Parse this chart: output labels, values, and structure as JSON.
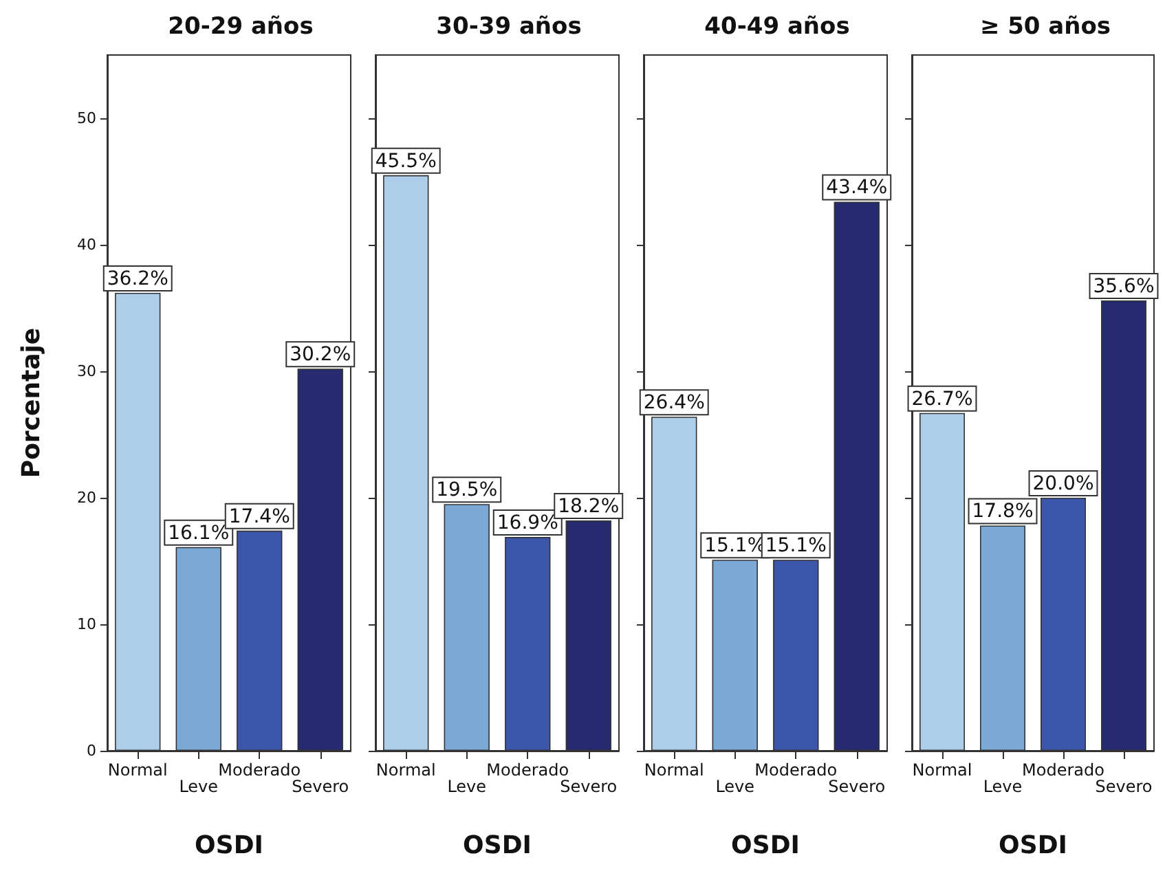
{
  "chart_data": [
    {
      "type": "bar",
      "title": "20-29 años",
      "xlabel": "OSDI",
      "ylabel": "Porcentaje",
      "categories": [
        "Normal",
        "Leve",
        "Moderado",
        "Severo"
      ],
      "values": [
        36.2,
        16.1,
        17.4,
        30.2
      ],
      "colors": [
        "#aecde9",
        "#7aa9d6",
        "#3b56ab",
        "#262a6e"
      ],
      "value_labels": [
        "36.2%",
        "16.1%",
        "17.4%",
        "30.2%"
      ],
      "ylim": [
        0,
        55
      ],
      "yticks": [
        0,
        10,
        20,
        30,
        40,
        50
      ],
      "grid": false
    },
    {
      "type": "bar",
      "title": "30-39 años",
      "xlabel": "OSDI",
      "categories": [
        "Normal",
        "Leve",
        "Moderado",
        "Severo"
      ],
      "values": [
        45.5,
        19.5,
        16.9,
        18.2
      ],
      "colors": [
        "#aecde9",
        "#7aa9d6",
        "#3b56ab",
        "#262a6e"
      ],
      "value_labels": [
        "45.5%",
        "19.5%",
        "16.9%",
        "18.2%"
      ],
      "ylim": [
        0,
        55
      ],
      "yticks": [
        0,
        10,
        20,
        30,
        40,
        50
      ],
      "grid": false,
      "tick_labels": "x"
    },
    {
      "type": "bar",
      "title": "40-49 años",
      "xlabel": "OSDI",
      "categories": [
        "Normal",
        "Leve",
        "Moderado",
        "Severo"
      ],
      "values": [
        26.4,
        15.1,
        15.1,
        43.4
      ],
      "colors": [
        "#aecde9",
        "#7aa9d6",
        "#3b56ab",
        "#262a6e"
      ],
      "value_labels": [
        "26.4%",
        "15.1%",
        "15.1%",
        "43.4%"
      ],
      "ylim": [
        0,
        55
      ],
      "yticks": [
        0,
        10,
        20,
        30,
        40,
        50
      ],
      "grid": false,
      "tick_labels": "x"
    },
    {
      "type": "bar",
      "title": "≥ 50 años",
      "xlabel": "OSDI",
      "categories": [
        "Normal",
        "Leve",
        "Moderado",
        "Severo"
      ],
      "values": [
        26.7,
        17.8,
        20.0,
        35.6
      ],
      "colors": [
        "#aecde9",
        "#7aa9d6",
        "#3b56ab",
        "#262a6e"
      ],
      "value_labels": [
        "26.7%",
        "17.8%",
        "20.0%",
        "35.6%"
      ],
      "ylim": [
        0,
        55
      ],
      "yticks": [
        0,
        10,
        20,
        30,
        40,
        50
      ],
      "grid": false,
      "tick_labels": "x"
    }
  ]
}
